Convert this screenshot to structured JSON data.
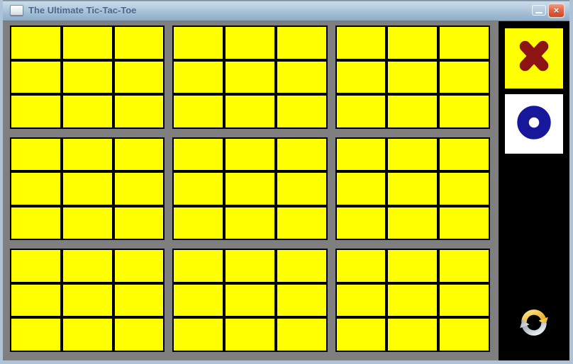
{
  "window": {
    "title": "The Ultimate Tic-Tac-Toe",
    "controls": {
      "minimize_glyph": "–",
      "close_glyph": "×"
    }
  },
  "game": {
    "name": "ultimate-tic-tac-toe",
    "current_player": "X",
    "boards": [
      [
        "",
        "",
        "",
        "",
        "",
        "",
        "",
        "",
        ""
      ],
      [
        "",
        "",
        "",
        "",
        "",
        "",
        "",
        "",
        ""
      ],
      [
        "",
        "",
        "",
        "",
        "",
        "",
        "",
        "",
        ""
      ],
      [
        "",
        "",
        "",
        "",
        "",
        "",
        "",
        "",
        ""
      ],
      [
        "",
        "",
        "",
        "",
        "",
        "",
        "",
        "",
        ""
      ],
      [
        "",
        "",
        "",
        "",
        "",
        "",
        "",
        "",
        ""
      ],
      [
        "",
        "",
        "",
        "",
        "",
        "",
        "",
        "",
        ""
      ],
      [
        "",
        "",
        "",
        "",
        "",
        "",
        "",
        "",
        ""
      ],
      [
        "",
        "",
        "",
        "",
        "",
        "",
        "",
        "",
        ""
      ]
    ]
  },
  "sidebar": {
    "players": [
      {
        "symbol": "X",
        "active": true
      },
      {
        "symbol": "O",
        "active": false
      }
    ],
    "refresh_action": "restart-game"
  },
  "colors": {
    "cell_yellow": "#ffff00",
    "board_background_gray": "#7f7f7f",
    "grid_line_black": "#000000",
    "sidebar_black": "#000000",
    "x_mark": "#8e1313",
    "o_mark": "#17179c",
    "active_player_highlight": "#ffff00",
    "titlebar_top": "#c9dbe9",
    "titlebar_bottom": "#8fadc9",
    "title_text": "#47678a",
    "close_button_red": "#d85535",
    "window_frame_blue": "#aec3d7",
    "refresh_gold": "#e9a112",
    "refresh_silver": "#98a2ad"
  }
}
